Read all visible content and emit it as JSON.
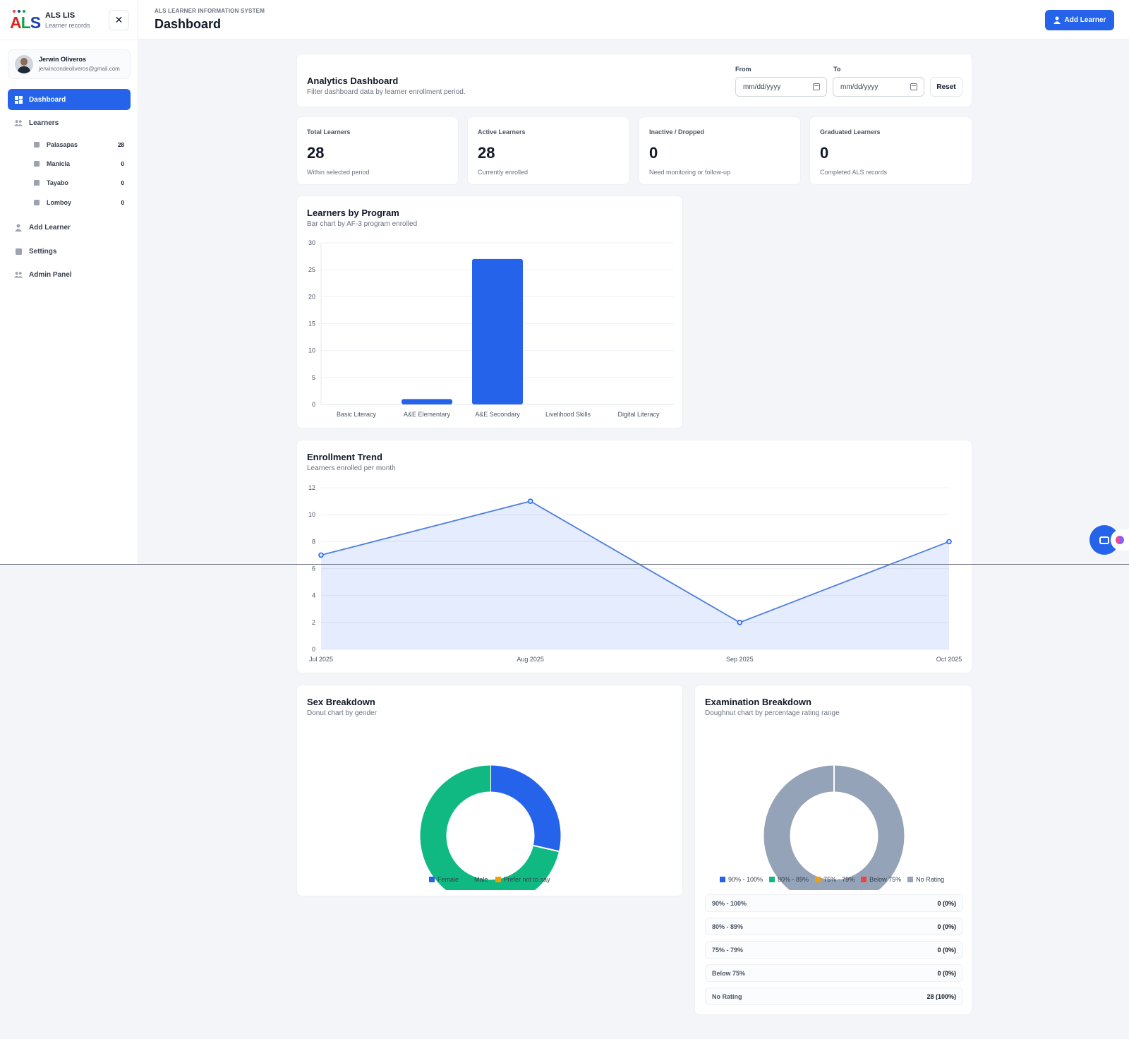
{
  "brand": {
    "title": "ALS LIS",
    "subtitle": "Learner records",
    "logo_text": "ALS"
  },
  "sidebar": {
    "close_icon": "close-icon",
    "user": {
      "name": "Jerwin Oliveros",
      "email": "jerwincondeoliveros@gmail.com"
    },
    "items": [
      {
        "label": "Dashboard",
        "icon": "dashboard-icon",
        "active": true
      },
      {
        "label": "Learners",
        "icon": "users-icon"
      },
      {
        "label": "Add Learner",
        "icon": "user-add-icon"
      },
      {
        "label": "Settings",
        "icon": "settings-icon"
      },
      {
        "label": "Admin Panel",
        "icon": "admin-icon"
      }
    ],
    "sub_items": [
      {
        "label": "Palasapas",
        "count": "28"
      },
      {
        "label": "Manicla",
        "count": "0"
      },
      {
        "label": "Tayabo",
        "count": "0"
      },
      {
        "label": "Lomboy",
        "count": "0"
      }
    ]
  },
  "header": {
    "supertitle": "ALS LEARNER INFORMATION SYSTEM",
    "title": "Dashboard",
    "add_button": "Add Learner"
  },
  "filters": {
    "title": "Analytics Dashboard",
    "subtitle": "Filter dashboard data by learner enrollment period.",
    "from_label": "From",
    "from_placeholder": "mm/dd/yyyy",
    "to_label": "To",
    "to_placeholder": "mm/dd/yyyy",
    "reset": "Reset"
  },
  "stats": [
    {
      "label": "Total Learners",
      "value": "28",
      "note": "Within selected period"
    },
    {
      "label": "Active Learners",
      "value": "28",
      "note": "Currently enrolled"
    },
    {
      "label": "Inactive / Dropped",
      "value": "0",
      "note": "Need monitoring or follow-up"
    },
    {
      "label": "Graduated Learners",
      "value": "0",
      "note": "Completed ALS records"
    }
  ],
  "program_card": {
    "title": "Learners by Program",
    "subtitle": "Bar chart by AF-3 program enrolled"
  },
  "trend_card": {
    "title": "Enrollment Trend",
    "subtitle": "Learners enrolled per month"
  },
  "sex_card": {
    "title": "Sex Breakdown",
    "subtitle": "Donut chart by gender"
  },
  "exam_card": {
    "title": "Examination Breakdown",
    "subtitle": "Doughnut chart by percentage rating range",
    "rows": [
      {
        "label": "90% - 100%",
        "value": "0 (0%)"
      },
      {
        "label": "80% - 89%",
        "value": "0 (0%)"
      },
      {
        "label": "75% - 79%",
        "value": "0 (0%)"
      },
      {
        "label": "Below 75%",
        "value": "0 (0%)"
      },
      {
        "label": "No Rating",
        "value": "28 (100%)"
      }
    ]
  },
  "colors": {
    "accent": "#2563eb",
    "green": "#10b981",
    "amber": "#f59e0b",
    "red": "#ef4444",
    "gray": "#94a3b8"
  },
  "chart_data": [
    {
      "type": "bar",
      "categories": [
        "Basic Literacy",
        "A&E Elementary",
        "A&E Secondary",
        "Livelihood Skills",
        "Digital Literacy"
      ],
      "values": [
        0,
        1,
        27,
        0,
        0
      ],
      "ylim": [
        0,
        30
      ],
      "yticks": [
        0,
        5,
        10,
        15,
        20,
        25,
        30
      ],
      "grid": true
    },
    {
      "type": "area",
      "categories": [
        "Jul 2025",
        "Aug 2025",
        "Sep 2025",
        "Oct 2025"
      ],
      "values": [
        7,
        11,
        2,
        8
      ],
      "ylim": [
        0,
        12
      ],
      "yticks": [
        0,
        2,
        4,
        6,
        8,
        10,
        12
      ],
      "grid": true
    },
    {
      "type": "pie",
      "donut": true,
      "labels": [
        "Female",
        "Male",
        "Prefer not to say"
      ],
      "values": [
        8,
        20,
        0
      ],
      "colors": [
        "#2563eb",
        "#10b981",
        "#f59e0b"
      ],
      "legend": "bottom"
    },
    {
      "type": "pie",
      "donut": true,
      "labels": [
        "90% - 100%",
        "80% - 89%",
        "75% - 79%",
        "Below 75%",
        "No Rating"
      ],
      "values": [
        0,
        0,
        0,
        0,
        28
      ],
      "colors": [
        "#2563eb",
        "#10b981",
        "#f59e0b",
        "#ef4444",
        "#94a3b8"
      ],
      "legend": "bottom"
    }
  ]
}
